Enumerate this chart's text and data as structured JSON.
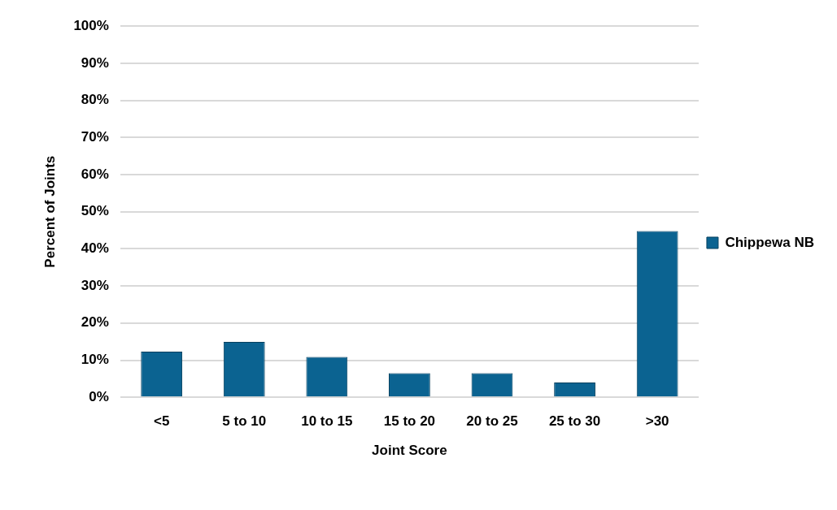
{
  "chart_data": {
    "type": "bar",
    "xlabel": "Joint Score",
    "ylabel": "Percent of Joints",
    "categories": [
      "<5",
      "5 to 10",
      "10 to 15",
      "15 to 20",
      "20 to 25",
      "25 to 30",
      ">30"
    ],
    "series": [
      {
        "name": "Chippewa NB",
        "color": "#0b6391",
        "values": [
          12.3,
          14.9,
          10.9,
          6.5,
          6.5,
          4.0,
          44.8
        ]
      }
    ],
    "ylim": [
      0,
      100
    ],
    "yticks": [
      {
        "value": 0,
        "label": "0%"
      },
      {
        "value": 10,
        "label": "10%"
      },
      {
        "value": 20,
        "label": "20%"
      },
      {
        "value": 30,
        "label": "30%"
      },
      {
        "value": 40,
        "label": "40%"
      },
      {
        "value": 50,
        "label": "50%"
      },
      {
        "value": 60,
        "label": "60%"
      },
      {
        "value": 70,
        "label": "70%"
      },
      {
        "value": 80,
        "label": "80%"
      },
      {
        "value": 90,
        "label": "90%"
      },
      {
        "value": 100,
        "label": "100%"
      }
    ],
    "grid": "y",
    "legend": "right"
  }
}
